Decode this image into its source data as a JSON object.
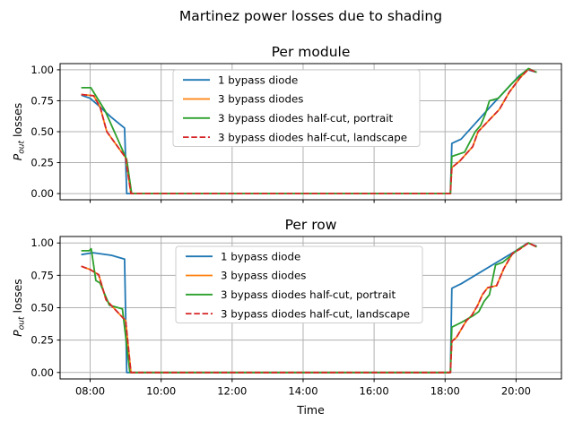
{
  "figure": {
    "suptitle": "Martinez power losses due to shading",
    "background": "#ffffff",
    "grid_color": "#b0b0b0",
    "legend_border_color": "#cccccc"
  },
  "chart_data": [
    {
      "type": "line",
      "title": "Per module",
      "xlabel": "",
      "ylabel": "P_out losses",
      "ylabel_math": {
        "base": "P",
        "sub": "out",
        "suffix": " losses"
      },
      "x_unit": "time_of_day_hours",
      "xlim_hours": [
        7.153,
        21.278
      ],
      "ylim": [
        -0.05,
        1.05
      ],
      "xticks": [
        8,
        10,
        12,
        14,
        16,
        18,
        20
      ],
      "xtick_labels": [],
      "yticks": [
        0,
        0.25,
        0.5,
        0.75,
        1.0
      ],
      "ytick_labels": [
        "0.00",
        "0.25",
        "0.50",
        "0.75",
        "1.00"
      ],
      "grid": true,
      "legend": {
        "position": "upper center",
        "entries": [
          "1 bypass diode",
          "3 bypass diodes",
          "3 bypass diodes half-cut, portrait",
          "3 bypass diodes half-cut, landscape"
        ]
      },
      "series": [
        {
          "name": "1 bypass diode",
          "color": "#1f77b4",
          "line_style": "solid",
          "points": [
            [
              7.75,
              0.795
            ],
            [
              8.0,
              0.77
            ],
            [
              8.2,
              0.72
            ],
            [
              8.6,
              0.615
            ],
            [
              8.97,
              0.53
            ],
            [
              9.03,
              0.0
            ],
            [
              18.15,
              0.0
            ],
            [
              18.19,
              0.405
            ],
            [
              18.45,
              0.44
            ],
            [
              19.27,
              0.7
            ],
            [
              20.08,
              0.95
            ],
            [
              20.33,
              1.0
            ],
            [
              20.58,
              0.98
            ]
          ]
        },
        {
          "name": "3 bypass diodes",
          "color": "#ff7f0e",
          "line_style": "solid",
          "points": [
            [
              7.75,
              0.8
            ],
            [
              8.1,
              0.79
            ],
            [
              8.28,
              0.7
            ],
            [
              8.47,
              0.5
            ],
            [
              9.0,
              0.29
            ],
            [
              9.15,
              0.0
            ],
            [
              18.15,
              0.0
            ],
            [
              18.19,
              0.21
            ],
            [
              18.42,
              0.265
            ],
            [
              18.78,
              0.38
            ],
            [
              18.93,
              0.5
            ],
            [
              19.18,
              0.575
            ],
            [
              19.53,
              0.68
            ],
            [
              19.81,
              0.82
            ],
            [
              20.11,
              0.935
            ],
            [
              20.35,
              1.005
            ],
            [
              20.58,
              0.98
            ]
          ]
        },
        {
          "name": "3 bypass diodes half-cut, portrait",
          "color": "#2ca02c",
          "line_style": "solid",
          "points": [
            [
              7.75,
              0.855
            ],
            [
              8.02,
              0.855
            ],
            [
              8.42,
              0.67
            ],
            [
              9.03,
              0.275
            ],
            [
              9.17,
              0.0
            ],
            [
              18.15,
              0.0
            ],
            [
              18.19,
              0.3
            ],
            [
              18.55,
              0.335
            ],
            [
              18.85,
              0.5
            ],
            [
              19.0,
              0.55
            ],
            [
              19.13,
              0.64
            ],
            [
              19.25,
              0.75
            ],
            [
              19.5,
              0.77
            ],
            [
              19.85,
              0.88
            ],
            [
              20.12,
              0.955
            ],
            [
              20.35,
              1.01
            ],
            [
              20.58,
              0.98
            ]
          ]
        },
        {
          "name": "3 bypass diodes half-cut, landscape",
          "color": "#d62728",
          "line_style": "dashed",
          "points": [
            [
              7.75,
              0.8
            ],
            [
              8.1,
              0.79
            ],
            [
              8.28,
              0.7
            ],
            [
              8.47,
              0.5
            ],
            [
              9.0,
              0.29
            ],
            [
              9.15,
              0.0
            ],
            [
              18.15,
              0.0
            ],
            [
              18.19,
              0.21
            ],
            [
              18.42,
              0.265
            ],
            [
              18.78,
              0.38
            ],
            [
              18.93,
              0.5
            ],
            [
              19.18,
              0.575
            ],
            [
              19.53,
              0.68
            ],
            [
              19.81,
              0.82
            ],
            [
              20.11,
              0.935
            ],
            [
              20.35,
              1.005
            ],
            [
              20.58,
              0.98
            ]
          ]
        }
      ]
    },
    {
      "type": "line",
      "title": "Per row",
      "xlabel": "Time",
      "ylabel": "P_out losses",
      "ylabel_math": {
        "base": "P",
        "sub": "out",
        "suffix": " losses"
      },
      "x_unit": "time_of_day_hours",
      "xlim_hours": [
        7.153,
        21.278
      ],
      "ylim": [
        -0.05,
        1.05
      ],
      "xticks": [
        8,
        10,
        12,
        14,
        16,
        18,
        20
      ],
      "xtick_labels": [
        "08:00",
        "10:00",
        "12:00",
        "14:00",
        "16:00",
        "18:00",
        "20:00"
      ],
      "yticks": [
        0,
        0.25,
        0.5,
        0.75,
        1.0
      ],
      "ytick_labels": [
        "0.00",
        "0.25",
        "0.50",
        "0.75",
        "1.00"
      ],
      "grid": true,
      "legend": {
        "position": "upper center",
        "entries": [
          "1 bypass diode",
          "3 bypass diodes",
          "3 bypass diodes half-cut, portrait",
          "3 bypass diodes half-cut, landscape"
        ]
      },
      "series": [
        {
          "name": "1 bypass diode",
          "color": "#1f77b4",
          "line_style": "solid",
          "points": [
            [
              7.75,
              0.91
            ],
            [
              8.08,
              0.925
            ],
            [
              8.6,
              0.905
            ],
            [
              8.97,
              0.875
            ],
            [
              9.03,
              0.0
            ],
            [
              18.15,
              0.0
            ],
            [
              18.19,
              0.65
            ],
            [
              18.45,
              0.685
            ],
            [
              20.0,
              0.94
            ],
            [
              20.33,
              1.0
            ],
            [
              20.58,
              0.975
            ]
          ]
        },
        {
          "name": "3 bypass diodes",
          "color": "#ff7f0e",
          "line_style": "solid",
          "points": [
            [
              7.75,
              0.82
            ],
            [
              8.0,
              0.795
            ],
            [
              8.24,
              0.755
            ],
            [
              8.45,
              0.56
            ],
            [
              9.0,
              0.4
            ],
            [
              9.15,
              0.0
            ],
            [
              18.15,
              0.0
            ],
            [
              18.19,
              0.24
            ],
            [
              18.32,
              0.27
            ],
            [
              18.6,
              0.4
            ],
            [
              18.75,
              0.44
            ],
            [
              18.92,
              0.52
            ],
            [
              19.05,
              0.6
            ],
            [
              19.2,
              0.655
            ],
            [
              19.45,
              0.67
            ],
            [
              19.65,
              0.8
            ],
            [
              19.9,
              0.92
            ],
            [
              20.12,
              0.955
            ],
            [
              20.35,
              1.0
            ],
            [
              20.58,
              0.97
            ]
          ]
        },
        {
          "name": "3 bypass diodes half-cut, portrait",
          "color": "#2ca02c",
          "line_style": "solid",
          "points": [
            [
              7.75,
              0.94
            ],
            [
              7.97,
              0.94
            ],
            [
              8.03,
              0.955
            ],
            [
              8.16,
              0.71
            ],
            [
              8.28,
              0.69
            ],
            [
              8.54,
              0.52
            ],
            [
              8.91,
              0.49
            ],
            [
              9.12,
              0.0
            ],
            [
              18.15,
              0.0
            ],
            [
              18.19,
              0.35
            ],
            [
              18.45,
              0.385
            ],
            [
              18.8,
              0.44
            ],
            [
              18.95,
              0.47
            ],
            [
              19.1,
              0.55
            ],
            [
              19.25,
              0.6
            ],
            [
              19.42,
              0.83
            ],
            [
              19.62,
              0.85
            ],
            [
              19.8,
              0.89
            ],
            [
              20.05,
              0.95
            ],
            [
              20.35,
              1.0
            ],
            [
              20.58,
              0.97
            ]
          ]
        },
        {
          "name": "3 bypass diodes half-cut, landscape",
          "color": "#d62728",
          "line_style": "dashed",
          "points": [
            [
              7.75,
              0.82
            ],
            [
              8.0,
              0.795
            ],
            [
              8.24,
              0.755
            ],
            [
              8.45,
              0.56
            ],
            [
              9.0,
              0.4
            ],
            [
              9.15,
              0.0
            ],
            [
              18.15,
              0.0
            ],
            [
              18.19,
              0.24
            ],
            [
              18.32,
              0.27
            ],
            [
              18.6,
              0.4
            ],
            [
              18.75,
              0.44
            ],
            [
              18.92,
              0.52
            ],
            [
              19.05,
              0.6
            ],
            [
              19.2,
              0.655
            ],
            [
              19.45,
              0.67
            ],
            [
              19.65,
              0.8
            ],
            [
              19.9,
              0.92
            ],
            [
              20.12,
              0.955
            ],
            [
              20.35,
              1.0
            ],
            [
              20.58,
              0.97
            ]
          ]
        }
      ]
    }
  ]
}
